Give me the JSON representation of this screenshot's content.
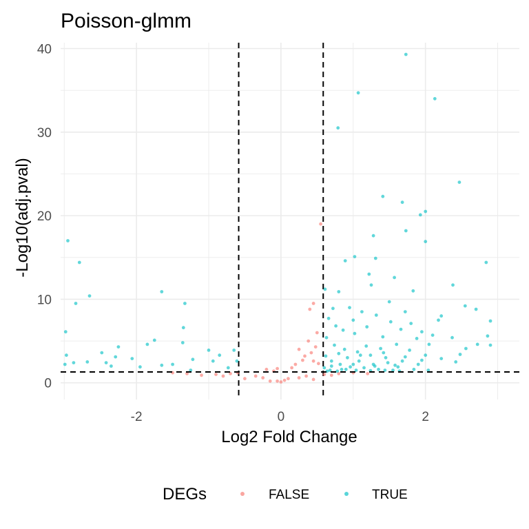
{
  "chart_data": {
    "type": "scatter",
    "title": "Poisson-glmm",
    "xlabel": "Log2 Fold Change",
    "ylabel": "-Log10(adj.pval)",
    "xlim": [
      -3.05,
      3.3
    ],
    "ylim": [
      -2,
      40.7
    ],
    "x_ticks": [
      -2,
      0,
      2
    ],
    "y_ticks": [
      0,
      10,
      20,
      30,
      40
    ],
    "grid": true,
    "threshold_lines": {
      "x": [
        -0.585,
        0.585
      ],
      "y": 1.3,
      "style": "dashed"
    },
    "legend": {
      "title": "DEGs",
      "position": "bottom",
      "entries": [
        {
          "label": "FALSE",
          "color": "#F8766D"
        },
        {
          "label": "TRUE",
          "color": "#00BFC4"
        }
      ]
    },
    "series": [
      {
        "name": "FALSE",
        "color": "#F8766D",
        "points": [
          [
            0.55,
            19.0
          ],
          [
            0.4,
            8.8
          ],
          [
            0.45,
            9.5
          ],
          [
            0.5,
            6.0
          ],
          [
            0.38,
            5.0
          ],
          [
            0.48,
            4.3
          ],
          [
            0.25,
            4.0
          ],
          [
            0.42,
            3.6
          ],
          [
            0.33,
            3.2
          ],
          [
            0.3,
            2.7
          ],
          [
            0.45,
            2.6
          ],
          [
            0.52,
            2.3
          ],
          [
            0.2,
            2.2
          ],
          [
            0.15,
            1.8
          ],
          [
            -0.2,
            1.6
          ],
          [
            -0.1,
            1.4
          ],
          [
            -0.05,
            1.7
          ],
          [
            -0.6,
            1.2
          ],
          [
            -0.7,
            1.1
          ],
          [
            -0.9,
            1.0
          ],
          [
            -1.1,
            0.9
          ],
          [
            -1.3,
            1.1
          ],
          [
            -1.5,
            1.2
          ],
          [
            -0.35,
            0.8
          ],
          [
            -0.25,
            0.6
          ],
          [
            0.1,
            0.5
          ],
          [
            0.05,
            0.3
          ],
          [
            0.0,
            0.1
          ],
          [
            -0.05,
            0.2
          ],
          [
            0.35,
            0.8
          ],
          [
            0.25,
            0.6
          ],
          [
            0.6,
            1.0
          ],
          [
            0.8,
            1.1
          ],
          [
            1.0,
            1.2
          ],
          [
            1.2,
            1.1
          ],
          [
            0.7,
            0.9
          ],
          [
            -0.8,
            0.8
          ],
          [
            -0.5,
            0.5
          ],
          [
            0.45,
            0.4
          ],
          [
            -0.15,
            0.2
          ]
        ]
      },
      {
        "name": "TRUE",
        "color": "#00BFC4",
        "points": [
          [
            1.73,
            39.3
          ],
          [
            1.07,
            34.7
          ],
          [
            2.13,
            34.0
          ],
          [
            0.79,
            30.5
          ],
          [
            2.47,
            24.0
          ],
          [
            1.41,
            22.3
          ],
          [
            1.68,
            21.6
          ],
          [
            2.0,
            20.5
          ],
          [
            1.93,
            20.1
          ],
          [
            1.73,
            18.2
          ],
          [
            2.0,
            16.9
          ],
          [
            1.28,
            17.6
          ],
          [
            1.02,
            15.1
          ],
          [
            1.31,
            14.9
          ],
          [
            2.84,
            14.4
          ],
          [
            0.89,
            14.6
          ],
          [
            -2.95,
            17.0
          ],
          [
            -2.79,
            14.4
          ],
          [
            -2.84,
            9.5
          ],
          [
            -2.65,
            10.4
          ],
          [
            -1.65,
            10.9
          ],
          [
            -1.33,
            9.5
          ],
          [
            -1.35,
            6.6
          ],
          [
            -2.98,
            6.1
          ],
          [
            -1.75,
            5.1
          ],
          [
            -1.85,
            4.6
          ],
          [
            -2.25,
            4.3
          ],
          [
            -2.48,
            3.6
          ],
          [
            -2.97,
            3.3
          ],
          [
            -2.29,
            3.1
          ],
          [
            -2.06,
            2.9
          ],
          [
            -2.42,
            2.4
          ],
          [
            -1.95,
            1.9
          ],
          [
            -2.68,
            2.5
          ],
          [
            -2.87,
            2.4
          ],
          [
            -2.35,
            2.0
          ],
          [
            -2.99,
            2.2
          ],
          [
            -1.36,
            4.8
          ],
          [
            -1.0,
            3.9
          ],
          [
            -1.22,
            2.8
          ],
          [
            -0.94,
            2.6
          ],
          [
            -0.73,
            1.8
          ],
          [
            -0.85,
            3.3
          ],
          [
            -0.61,
            2.6
          ],
          [
            -1.5,
            2.2
          ],
          [
            -1.25,
            1.5
          ],
          [
            -1.65,
            2.1
          ],
          [
            -0.65,
            3.9
          ],
          [
            0.61,
            11.2
          ],
          [
            0.8,
            10.9
          ],
          [
            1.22,
            13.0
          ],
          [
            1.57,
            12.6
          ],
          [
            1.25,
            11.7
          ],
          [
            1.83,
            11.0
          ],
          [
            2.38,
            11.7
          ],
          [
            2.55,
            9.2
          ],
          [
            2.22,
            8.0
          ],
          [
            2.9,
            7.4
          ],
          [
            2.7,
            8.8
          ],
          [
            2.18,
            7.5
          ],
          [
            2.72,
            4.6
          ],
          [
            2.86,
            5.6
          ],
          [
            2.9,
            4.5
          ],
          [
            2.56,
            4.1
          ],
          [
            2.48,
            3.4
          ],
          [
            2.37,
            5.4
          ],
          [
            2.1,
            5.7
          ],
          [
            1.95,
            6.1
          ],
          [
            1.8,
            7.1
          ],
          [
            1.66,
            6.4
          ],
          [
            1.52,
            7.3
          ],
          [
            1.32,
            8.1
          ],
          [
            1.12,
            8.5
          ],
          [
            0.95,
            9.0
          ],
          [
            0.72,
            8.9
          ],
          [
            0.66,
            7.7
          ],
          [
            0.86,
            6.3
          ],
          [
            1.02,
            5.9
          ],
          [
            1.19,
            6.7
          ],
          [
            1.41,
            5.5
          ],
          [
            1.6,
            4.6
          ],
          [
            1.78,
            3.9
          ],
          [
            2.0,
            3.3
          ],
          [
            2.22,
            2.9
          ],
          [
            2.42,
            2.5
          ],
          [
            0.63,
            5.4
          ],
          [
            0.74,
            4.5
          ],
          [
            0.88,
            4.0
          ],
          [
            1.06,
            3.7
          ],
          [
            1.24,
            3.3
          ],
          [
            1.45,
            3.0
          ],
          [
            1.68,
            2.6
          ],
          [
            1.9,
            2.2
          ],
          [
            0.62,
            3.2
          ],
          [
            0.7,
            2.6
          ],
          [
            0.82,
            2.2
          ],
          [
            0.96,
            1.9
          ],
          [
            1.15,
            1.8
          ],
          [
            1.35,
            1.6
          ],
          [
            1.55,
            1.5
          ],
          [
            0.6,
            1.8
          ],
          [
            0.68,
            1.5
          ],
          [
            0.78,
            1.4
          ],
          [
            0.9,
            1.6
          ],
          [
            1.08,
            2.6
          ],
          [
            1.28,
            2.2
          ],
          [
            1.48,
            2.4
          ],
          [
            1.72,
            3.1
          ],
          [
            1.62,
            1.9
          ],
          [
            0.92,
            3.0
          ],
          [
            1.18,
            4.4
          ],
          [
            1.38,
            4.1
          ],
          [
            1.5,
            9.7
          ],
          [
            0.76,
            6.8
          ],
          [
            1.0,
            7.5
          ],
          [
            1.72,
            8.5
          ],
          [
            1.88,
            5.3
          ],
          [
            2.05,
            4.6
          ],
          [
            0.64,
            1.4
          ],
          [
            0.84,
            1.6
          ],
          [
            1.04,
            1.5
          ],
          [
            1.24,
            1.45
          ],
          [
            1.44,
            1.5
          ],
          [
            1.64,
            1.4
          ],
          [
            1.84,
            1.6
          ],
          [
            2.04,
            1.5
          ],
          [
            0.7,
            2.0
          ],
          [
            1.0,
            2.2
          ],
          [
            1.3,
            2.0
          ],
          [
            1.58,
            2.1
          ],
          [
            0.8,
            3.5
          ],
          [
            1.1,
            3.3
          ],
          [
            1.42,
            3.6
          ],
          [
            1.95,
            2.7
          ]
        ]
      }
    ]
  }
}
